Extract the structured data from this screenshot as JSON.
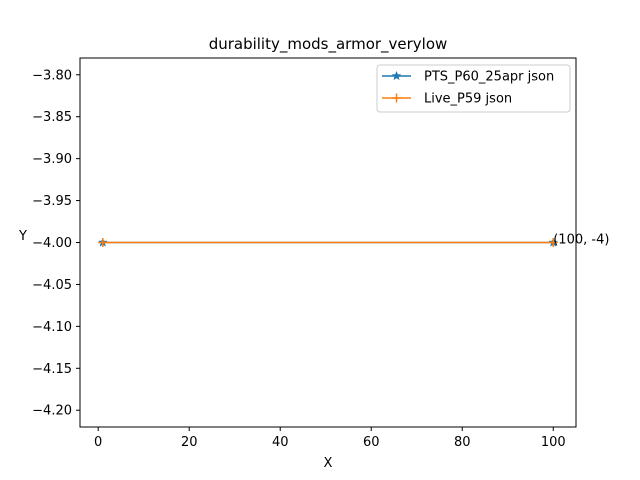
{
  "chart_data": {
    "type": "line",
    "title": "durability_mods_armor_verylow",
    "xlabel": "X",
    "ylabel": "Y",
    "xlim": [
      -4,
      105
    ],
    "ylim": [
      -4.22,
      -3.78
    ],
    "xticks": [
      0,
      20,
      40,
      60,
      80,
      100
    ],
    "yticks": [
      -3.8,
      -3.85,
      -3.9,
      -3.95,
      -4.0,
      -4.05,
      -4.1,
      -4.15,
      -4.2
    ],
    "xtick_labels": [
      "0",
      "20",
      "40",
      "60",
      "80",
      "100"
    ],
    "ytick_labels": [
      "−3.80",
      "−3.85",
      "−3.90",
      "−3.95",
      "−4.00",
      "−4.05",
      "−4.10",
      "−4.15",
      "−4.20"
    ],
    "grid": false,
    "legend_position": "top-right",
    "series": [
      {
        "name": "PTS_P60_25apr json",
        "x": [
          1,
          100
        ],
        "y": [
          -4,
          -4
        ],
        "color": "#1f77b4",
        "marker": "star"
      },
      {
        "name": "Live_P59 json",
        "x": [
          1,
          100
        ],
        "y": [
          -4,
          -4
        ],
        "color": "#ff7f0e",
        "marker": "plus"
      }
    ],
    "annotations": [
      {
        "text": "(100, -4)",
        "x": 100,
        "y": -4
      }
    ]
  }
}
